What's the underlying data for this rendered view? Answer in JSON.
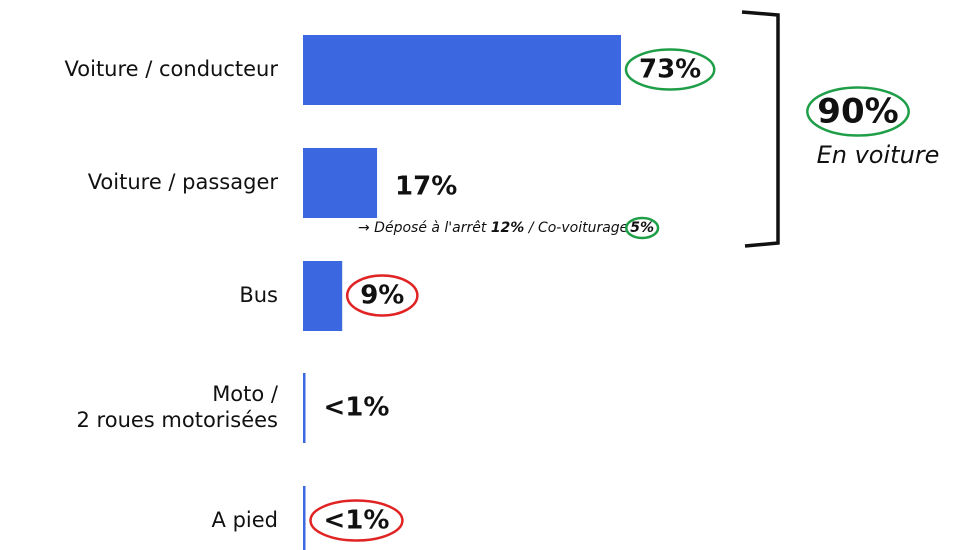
{
  "chart_data": {
    "type": "bar",
    "orientation": "horizontal",
    "categories": [
      "Voiture / conducteur",
      "Voiture / passager",
      "Bus",
      "Moto /\n2 roues motorisées",
      "A pied"
    ],
    "values": [
      73,
      17,
      9,
      0.5,
      0.5
    ],
    "value_labels": [
      "73%",
      "17%",
      "9%",
      "<1%",
      "<1%"
    ],
    "color": "#3b68e0",
    "circle_colors": [
      "#1f9e48",
      null,
      "#e02424",
      null,
      "#e02424"
    ],
    "group_total": {
      "label": "90%",
      "caption": "En voiture",
      "circle_color": "#1f9e48"
    },
    "subnote": {
      "text1": "→ Déposé à l'arrêt",
      "value1": "12%",
      "text2": "/ Co-voiturage",
      "value2": "5%",
      "circle_color": "#1f9e48"
    }
  }
}
